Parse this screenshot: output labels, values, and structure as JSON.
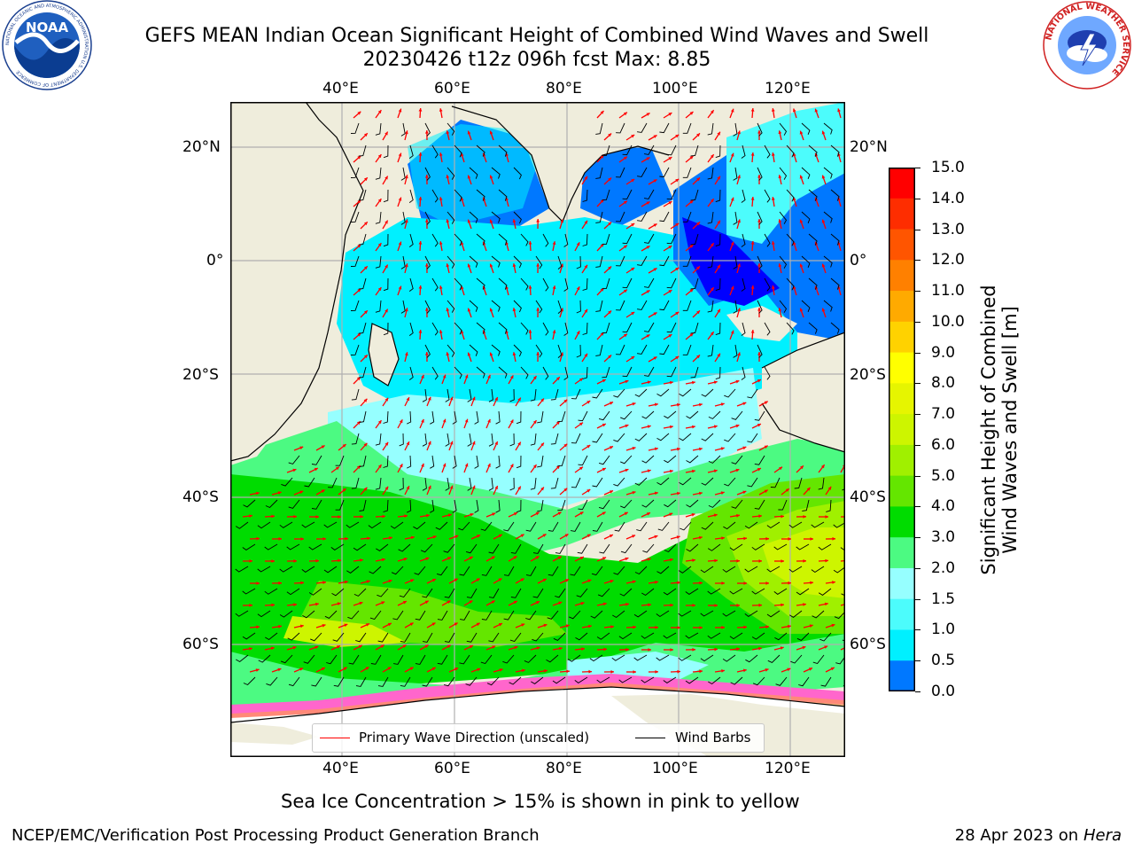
{
  "header": {
    "title_line1": "GEFS MEAN Indian Ocean Significant Height of Combined Wind Waves and Swell",
    "title_line2": "20230426 t12z 096h fcst   Max: 8.85"
  },
  "logos": {
    "noaa_logo_text": "NOAA",
    "nws_logo_text": "NATIONAL WEATHER SERVICE",
    "noaa_ring_text": "NATIONAL OCEANIC AND ATMOSPHERIC ADMINISTRATION  U.S. DEPARTMENT OF COMMERCE"
  },
  "map": {
    "lon_labels": [
      "40°E",
      "60°E",
      "80°E",
      "100°E",
      "120°E"
    ],
    "lat_labels": [
      "20°N",
      "0°",
      "20°S",
      "40°S",
      "60°S"
    ],
    "legend": {
      "primary_wave_label": "Primary Wave Direction (unscaled)",
      "primary_wave_color": "#ff0000",
      "wind_barbs_label": "Wind Barbs",
      "wind_barbs_color": "#000000"
    },
    "land_color": "#efeddc",
    "ice_note": "Sea Ice Concentration > 15% is shown in pink to yellow"
  },
  "colorbar": {
    "label_line1": "Significant Height of Combined",
    "label_line2": "Wind Waves and Swell [m]",
    "ticks": [
      "15.0",
      "14.0",
      "13.0",
      "12.0",
      "11.0",
      "10.0",
      "9.0",
      "8.0",
      "7.0",
      "6.0",
      "5.0",
      "4.0",
      "3.0",
      "2.0",
      "1.5",
      "1.0",
      "0.5",
      "0.0"
    ],
    "colors": [
      "#ff0000",
      "#fe2d00",
      "#ff5500",
      "#ff8000",
      "#ffaa00",
      "#ffd200",
      "#ffff00",
      "#e6f500",
      "#cdf500",
      "#a0f000",
      "#64e600",
      "#00dc00",
      "#4cfa82",
      "#96ffff",
      "#4cfcfc",
      "#00f0ff",
      "#0078ff",
      "#0000ff"
    ]
  },
  "footer": {
    "left": "NCEP/EMC/Verification Post Processing Product Generation Branch",
    "right_prefix": "28 Apr 2023 on ",
    "right_italic": "Hera"
  }
}
